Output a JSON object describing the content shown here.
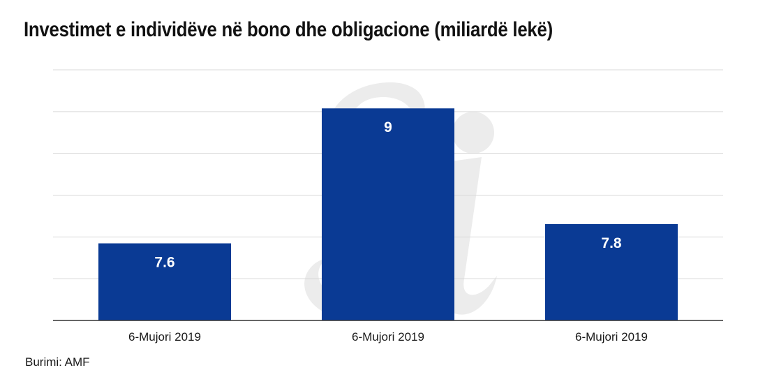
{
  "chart_data": {
    "type": "bar",
    "title": "Investimet e individëve në bono dhe obligacione (miliardë lekë)",
    "categories": [
      "6-Mujori 2019",
      "6-Mujori 2019",
      "6-Mujori 2019"
    ],
    "values": [
      7.6,
      9,
      7.8
    ],
    "data_labels": [
      "7.6",
      "9",
      "7.8"
    ],
    "ylim": [
      6.8,
      9.4
    ],
    "grid": true,
    "legend": "none",
    "bar_color": "#0a3a94",
    "source": "Burimi: AMF"
  },
  "colors": {
    "bar": "#0a3a94",
    "grid": "#d9d9d9",
    "axis": "#333333",
    "watermark": "#ececec"
  }
}
